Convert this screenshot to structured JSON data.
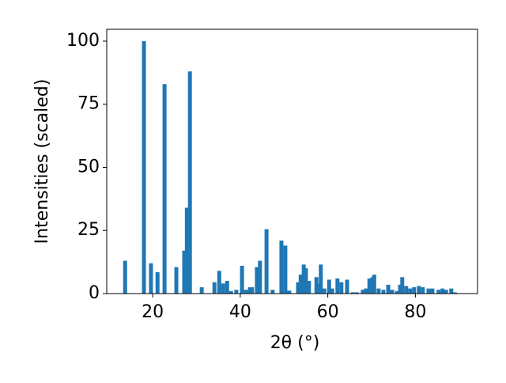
{
  "chart_data": {
    "type": "bar",
    "x_label": "2θ (°)",
    "y_label": "Intensities (scaled)",
    "color": "#1f77b4",
    "x": [
      13.7,
      18.0,
      19.6,
      21.1,
      22.7,
      25.4,
      27.2,
      27.8,
      28.5,
      31.2,
      34.1,
      35.2,
      36.1,
      37.0,
      37.9,
      39.1,
      40.4,
      41.3,
      42.2,
      42.7,
      43.8,
      44.5,
      46.0,
      47.4,
      49.4,
      50.3,
      51.2,
      53.2,
      53.8,
      54.5,
      55.0,
      55.7,
      57.4,
      57.9,
      58.4,
      59.2,
      60.3,
      61.0,
      62.2,
      63.1,
      64.4,
      65.7,
      66.6,
      68.0,
      68.7,
      69.5,
      70.2,
      70.6,
      71.6,
      72.7,
      73.8,
      74.7,
      75.8,
      76.5,
      77.0,
      77.9,
      78.8,
      79.7,
      80.8,
      81.7,
      83.0,
      83.9,
      85.3,
      86.2,
      87.0,
      88.2,
      89.0
    ],
    "values": [
      13,
      100,
      12,
      8.5,
      83,
      10.5,
      17,
      34,
      88,
      2.5,
      4.5,
      9,
      4,
      5,
      1,
      1.5,
      11,
      1.5,
      2.5,
      2.5,
      10.5,
      13,
      25.5,
      1.5,
      21,
      19,
      1.2,
      4.5,
      7.5,
      11.5,
      10,
      5,
      6.5,
      4,
      11.5,
      2,
      5.5,
      2,
      6,
      4.5,
      5.5,
      0.5,
      0.5,
      1.5,
      2,
      6,
      6.5,
      7.5,
      2,
      1.5,
      3.5,
      1.5,
      1,
      3.5,
      6.5,
      3,
      2,
      2.5,
      3,
      2.5,
      2,
      2,
      1.5,
      2,
      1.5,
      2,
      0.5
    ],
    "xlim": [
      9.5,
      94.2
    ],
    "ylim": [
      0,
      104.7
    ],
    "xticks": [
      20,
      40,
      60,
      80
    ],
    "yticks": [
      0,
      25,
      50,
      75,
      100
    ]
  }
}
